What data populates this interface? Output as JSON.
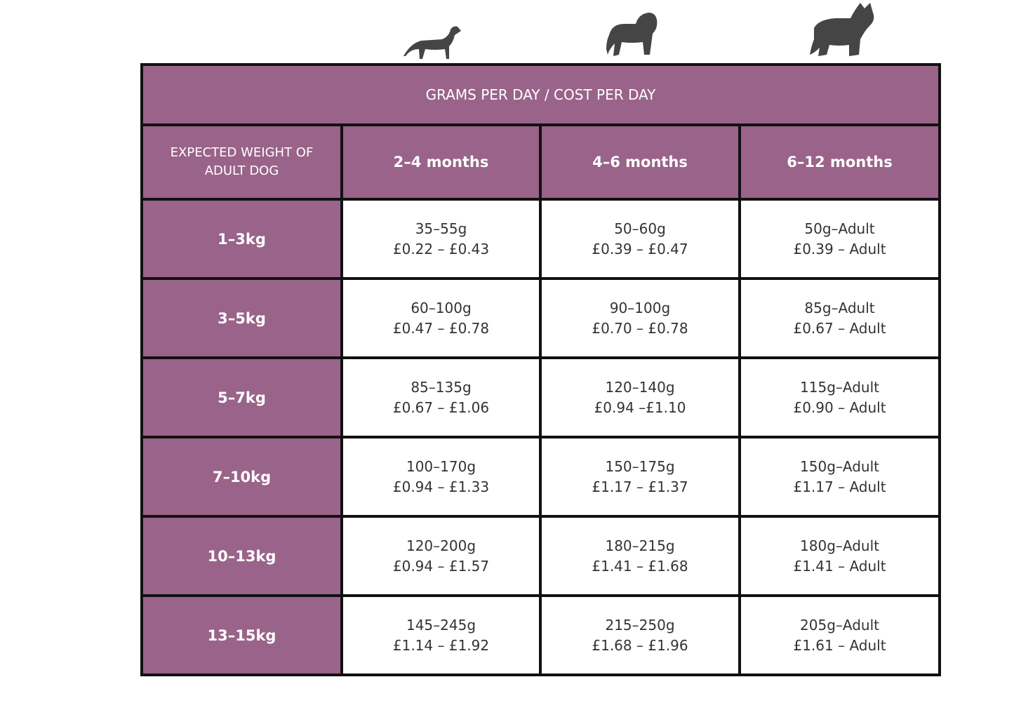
{
  "table": {
    "title": "GRAMS PER DAY / COST PER DAY",
    "corner": "EXPECTED WEIGHT OF ADULT DOG",
    "columns": [
      "2–4 months",
      "4–6 months",
      "6–12 months"
    ],
    "rows": [
      {
        "label": "1–3kg",
        "cells": [
          [
            "35–55g",
            "£0.22 – £0.43"
          ],
          [
            "50–60g",
            "£0.39 – £0.47"
          ],
          [
            "50g–Adult",
            "£0.39 – Adult"
          ]
        ]
      },
      {
        "label": "3–5kg",
        "cells": [
          [
            "60–100g",
            "£0.47 – £0.78"
          ],
          [
            "90–100g",
            "£0.70 – £0.78"
          ],
          [
            "85g–Adult",
            "£0.67 – Adult"
          ]
        ]
      },
      {
        "label": "5–7kg",
        "cells": [
          [
            "85–135g",
            "£0.67 – £1.06"
          ],
          [
            "120–140g",
            "£0.94 –£1.10"
          ],
          [
            "115g–Adult",
            "£0.90 – Adult"
          ]
        ]
      },
      {
        "label": "7–10kg",
        "cells": [
          [
            "100–170g",
            "£0.94 – £1.33"
          ],
          [
            "150–175g",
            "£1.17 – £1.37"
          ],
          [
            "150g–Adult",
            "£1.17 – Adult"
          ]
        ]
      },
      {
        "label": "10–13kg",
        "cells": [
          [
            "120–200g",
            "£0.94 – £1.57"
          ],
          [
            "180–215g",
            "£1.41 – £1.68"
          ],
          [
            "180g–Adult",
            "£1.41 – Adult"
          ]
        ]
      },
      {
        "label": "13–15kg",
        "cells": [
          [
            "145–245g",
            "£1.14 – £1.92"
          ],
          [
            "215–250g",
            "£1.68 – £1.96"
          ],
          [
            "205g–Adult",
            "£1.61 – Adult"
          ]
        ]
      }
    ]
  }
}
